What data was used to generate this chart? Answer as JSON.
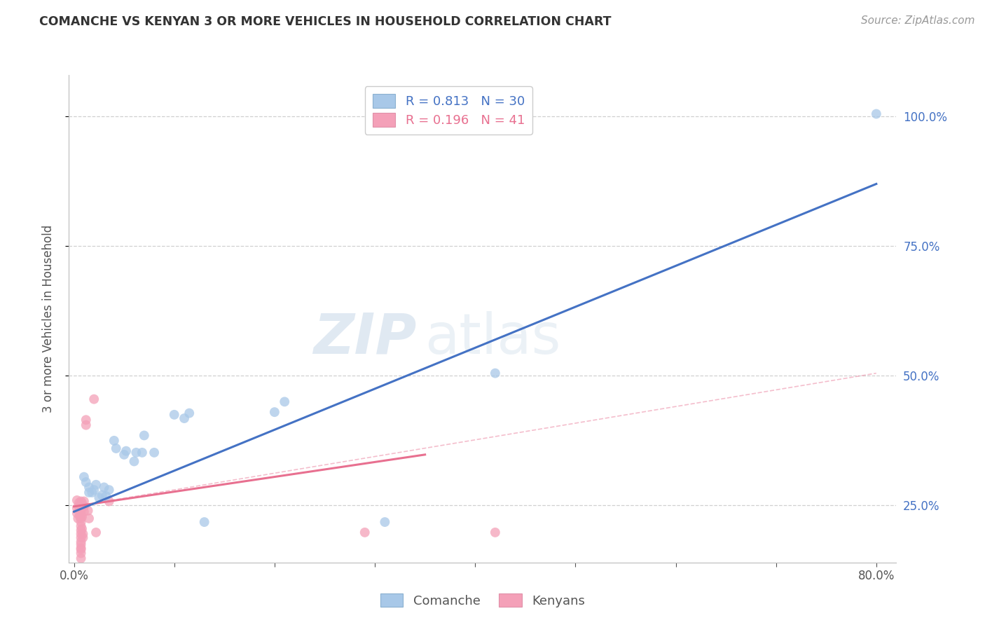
{
  "title": "COMANCHE VS KENYAN 3 OR MORE VEHICLES IN HOUSEHOLD CORRELATION CHART",
  "source": "Source: ZipAtlas.com",
  "ylabel": "3 or more Vehicles in Household",
  "legend_label1": "Comanche",
  "legend_label2": "Kenyans",
  "R1": 0.813,
  "N1": 30,
  "R2": 0.196,
  "N2": 41,
  "xlim": [
    -0.005,
    0.82
  ],
  "ylim": [
    0.14,
    1.08
  ],
  "xticks": [
    0.0,
    0.1,
    0.2,
    0.3,
    0.4,
    0.5,
    0.6,
    0.7,
    0.8
  ],
  "xticklabels": [
    "0.0%",
    "",
    "",
    "",
    "",
    "",
    "",
    "",
    "80.0%"
  ],
  "yticks": [
    0.25,
    0.5,
    0.75,
    1.0
  ],
  "yticklabels": [
    "25.0%",
    "50.0%",
    "75.0%",
    "100.0%"
  ],
  "blue_color": "#a8c8e8",
  "pink_color": "#f4a0b8",
  "blue_line_color": "#4472c4",
  "pink_line_color": "#e87090",
  "blue_scatter": [
    [
      0.01,
      0.305
    ],
    [
      0.012,
      0.295
    ],
    [
      0.015,
      0.285
    ],
    [
      0.015,
      0.275
    ],
    [
      0.018,
      0.275
    ],
    [
      0.02,
      0.28
    ],
    [
      0.022,
      0.29
    ],
    [
      0.025,
      0.265
    ],
    [
      0.028,
      0.27
    ],
    [
      0.03,
      0.285
    ],
    [
      0.032,
      0.268
    ],
    [
      0.035,
      0.28
    ],
    [
      0.04,
      0.375
    ],
    [
      0.042,
      0.36
    ],
    [
      0.05,
      0.348
    ],
    [
      0.052,
      0.355
    ],
    [
      0.06,
      0.335
    ],
    [
      0.062,
      0.352
    ],
    [
      0.068,
      0.352
    ],
    [
      0.07,
      0.385
    ],
    [
      0.08,
      0.352
    ],
    [
      0.1,
      0.425
    ],
    [
      0.11,
      0.418
    ],
    [
      0.115,
      0.428
    ],
    [
      0.13,
      0.218
    ],
    [
      0.2,
      0.43
    ],
    [
      0.21,
      0.45
    ],
    [
      0.31,
      0.218
    ],
    [
      0.42,
      0.505
    ],
    [
      0.8,
      1.005
    ]
  ],
  "pink_scatter": [
    [
      0.003,
      0.26
    ],
    [
      0.003,
      0.245
    ],
    [
      0.003,
      0.235
    ],
    [
      0.004,
      0.225
    ],
    [
      0.005,
      0.255
    ],
    [
      0.005,
      0.248
    ],
    [
      0.005,
      0.238
    ],
    [
      0.006,
      0.228
    ],
    [
      0.007,
      0.258
    ],
    [
      0.007,
      0.25
    ],
    [
      0.007,
      0.24
    ],
    [
      0.007,
      0.232
    ],
    [
      0.007,
      0.225
    ],
    [
      0.007,
      0.218
    ],
    [
      0.007,
      0.21
    ],
    [
      0.007,
      0.202
    ],
    [
      0.007,
      0.195
    ],
    [
      0.007,
      0.188
    ],
    [
      0.007,
      0.18
    ],
    [
      0.007,
      0.168
    ],
    [
      0.007,
      0.158
    ],
    [
      0.007,
      0.148
    ],
    [
      0.007,
      0.175
    ],
    [
      0.007,
      0.165
    ],
    [
      0.008,
      0.255
    ],
    [
      0.008,
      0.228
    ],
    [
      0.008,
      0.205
    ],
    [
      0.009,
      0.195
    ],
    [
      0.009,
      0.188
    ],
    [
      0.01,
      0.258
    ],
    [
      0.01,
      0.248
    ],
    [
      0.01,
      0.238
    ],
    [
      0.012,
      0.415
    ],
    [
      0.012,
      0.405
    ],
    [
      0.014,
      0.24
    ],
    [
      0.015,
      0.225
    ],
    [
      0.02,
      0.455
    ],
    [
      0.022,
      0.198
    ],
    [
      0.035,
      0.258
    ],
    [
      0.29,
      0.198
    ],
    [
      0.42,
      0.198
    ]
  ],
  "blue_line": {
    "x0": 0.0,
    "y0": 0.238,
    "x1": 0.8,
    "y1": 0.87
  },
  "pink_line_solid": {
    "x0": 0.0,
    "y0": 0.248,
    "x1": 0.35,
    "y1": 0.348
  },
  "pink_line_dashed": {
    "x0": 0.0,
    "y0": 0.248,
    "x1": 0.8,
    "y1": 0.505
  },
  "watermark_zip": "ZIP",
  "watermark_atlas": "atlas",
  "background_color": "#ffffff",
  "grid_color": "#d0d0d0"
}
